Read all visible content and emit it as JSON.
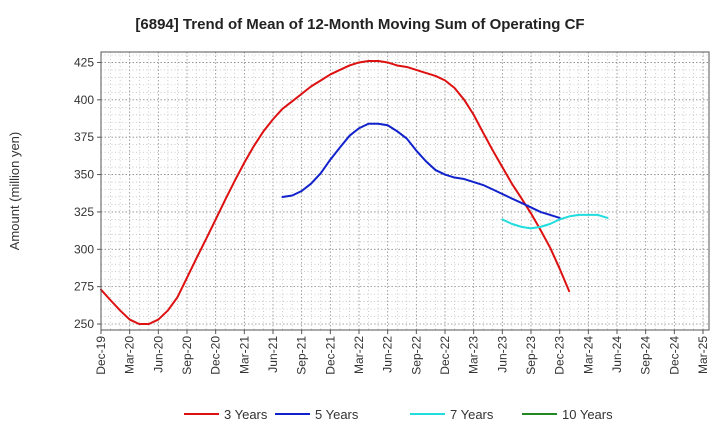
{
  "chart_data": {
    "type": "line",
    "title": "[6894]  Trend of Mean of 12-Month Moving Sum of Operating CF",
    "xlabel": "",
    "ylabel": "Amount (million yen)",
    "ylim": [
      246,
      432
    ],
    "yticks": [
      250,
      275,
      300,
      325,
      350,
      375,
      400,
      425
    ],
    "x_categories": [
      "Dec-19",
      "Mar-20",
      "Jun-20",
      "Sep-20",
      "Dec-20",
      "Mar-21",
      "Jun-21",
      "Sep-21",
      "Dec-21",
      "Mar-22",
      "Jun-22",
      "Sep-22",
      "Dec-22",
      "Mar-23",
      "Jun-23",
      "Sep-23",
      "Dec-23",
      "Mar-24",
      "Jun-24",
      "Sep-24",
      "Dec-24",
      "Mar-25"
    ],
    "grid": true,
    "legend_position": "bottom",
    "series": [
      {
        "name": "3 Years",
        "color": "#dd1111",
        "points": [
          [
            0,
            273
          ],
          [
            0.33,
            266
          ],
          [
            0.67,
            259
          ],
          [
            1,
            253
          ],
          [
            1.33,
            250
          ],
          [
            1.67,
            250
          ],
          [
            2,
            253
          ],
          [
            2.33,
            259
          ],
          [
            2.67,
            268
          ],
          [
            3,
            281
          ],
          [
            3.33,
            294
          ],
          [
            3.67,
            307
          ],
          [
            4,
            320
          ],
          [
            4.33,
            333
          ],
          [
            4.67,
            346
          ],
          [
            5,
            358
          ],
          [
            5.33,
            369
          ],
          [
            5.67,
            379
          ],
          [
            6,
            387
          ],
          [
            6.33,
            394
          ],
          [
            6.67,
            399
          ],
          [
            7,
            404
          ],
          [
            7.33,
            409
          ],
          [
            7.67,
            413
          ],
          [
            8,
            417
          ],
          [
            8.33,
            420
          ],
          [
            8.67,
            423
          ],
          [
            9,
            425
          ],
          [
            9.33,
            426
          ],
          [
            9.67,
            426
          ],
          [
            10,
            425
          ],
          [
            10.33,
            423
          ],
          [
            10.67,
            422
          ],
          [
            11,
            420
          ],
          [
            11.33,
            418
          ],
          [
            11.67,
            416
          ],
          [
            12,
            413
          ],
          [
            12.33,
            408
          ],
          [
            12.67,
            400
          ],
          [
            13,
            390
          ],
          [
            13.33,
            378
          ],
          [
            13.67,
            366
          ],
          [
            14,
            355
          ],
          [
            14.33,
            344
          ],
          [
            14.67,
            334
          ],
          [
            15,
            324
          ],
          [
            15.33,
            313
          ],
          [
            15.67,
            301
          ],
          [
            16,
            287
          ],
          [
            16.33,
            272
          ]
        ]
      },
      {
        "name": "5 Years",
        "color": "#1122cc",
        "points": [
          [
            6.33,
            335
          ],
          [
            6.67,
            336
          ],
          [
            7,
            339
          ],
          [
            7.33,
            344
          ],
          [
            7.67,
            351
          ],
          [
            8,
            360
          ],
          [
            8.33,
            368
          ],
          [
            8.67,
            376
          ],
          [
            9,
            381
          ],
          [
            9.33,
            384
          ],
          [
            9.67,
            384
          ],
          [
            10,
            383
          ],
          [
            10.33,
            379
          ],
          [
            10.67,
            374
          ],
          [
            11,
            366
          ],
          [
            11.33,
            359
          ],
          [
            11.67,
            353
          ],
          [
            12,
            350
          ],
          [
            12.33,
            348
          ],
          [
            12.67,
            347
          ],
          [
            13,
            345
          ],
          [
            13.33,
            343
          ],
          [
            13.67,
            340
          ],
          [
            14,
            337
          ],
          [
            14.33,
            334
          ],
          [
            14.67,
            331
          ],
          [
            15,
            328
          ],
          [
            15.33,
            325
          ],
          [
            15.67,
            323
          ],
          [
            16,
            321
          ]
        ]
      },
      {
        "name": "7 Years",
        "color": "#22dddd",
        "points": [
          [
            14,
            320
          ],
          [
            14.33,
            317
          ],
          [
            14.67,
            315
          ],
          [
            15,
            314
          ],
          [
            15.33,
            315
          ],
          [
            15.67,
            317
          ],
          [
            16,
            320
          ],
          [
            16.33,
            322
          ],
          [
            16.67,
            323
          ],
          [
            17,
            323
          ],
          [
            17.33,
            323
          ],
          [
            17.67,
            321
          ]
        ]
      },
      {
        "name": "10 Years",
        "color": "#228822",
        "points": []
      }
    ]
  }
}
